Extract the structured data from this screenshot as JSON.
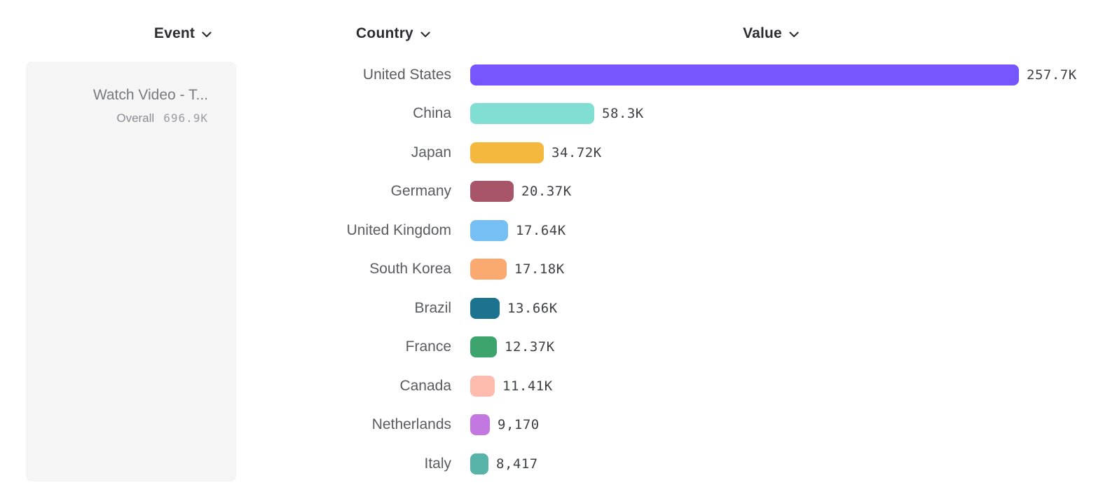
{
  "columns": [
    {
      "id": "event",
      "label": "Event"
    },
    {
      "id": "country",
      "label": "Country"
    },
    {
      "id": "value",
      "label": "Value"
    }
  ],
  "event_panel": {
    "title": "Watch Video - T...",
    "overall_label": "Overall",
    "overall_value": "696.9K"
  },
  "chart_data": {
    "type": "bar",
    "orientation": "horizontal",
    "title": "",
    "xlabel": "",
    "ylabel": "",
    "xlim": [
      0,
      257700
    ],
    "grid": false,
    "legend": false,
    "categories": [
      "United States",
      "China",
      "Japan",
      "Germany",
      "United Kingdom",
      "South Korea",
      "Brazil",
      "France",
      "Canada",
      "Netherlands",
      "Italy"
    ],
    "values": [
      257700,
      58300,
      34720,
      20370,
      17640,
      17180,
      13660,
      12370,
      11410,
      9170,
      8417
    ],
    "value_labels": [
      "257.7K",
      "58.3K",
      "34.72K",
      "20.37K",
      "17.64K",
      "17.18K",
      "13.66K",
      "12.37K",
      "11.41K",
      "9,170",
      "8,417"
    ],
    "bar_colors": [
      "#7856ff",
      "#80dfd2",
      "#f5b83e",
      "#a85469",
      "#76bff5",
      "#faa971",
      "#1b7390",
      "#3ea46e",
      "#fcbbac",
      "#c278e0",
      "#57b2a8"
    ]
  },
  "ui_colors": {
    "panel_background": "#f5f5f6",
    "header_text": "#2c2d32",
    "row_label_text": "#5a5b60",
    "value_text": "#3f4045"
  }
}
